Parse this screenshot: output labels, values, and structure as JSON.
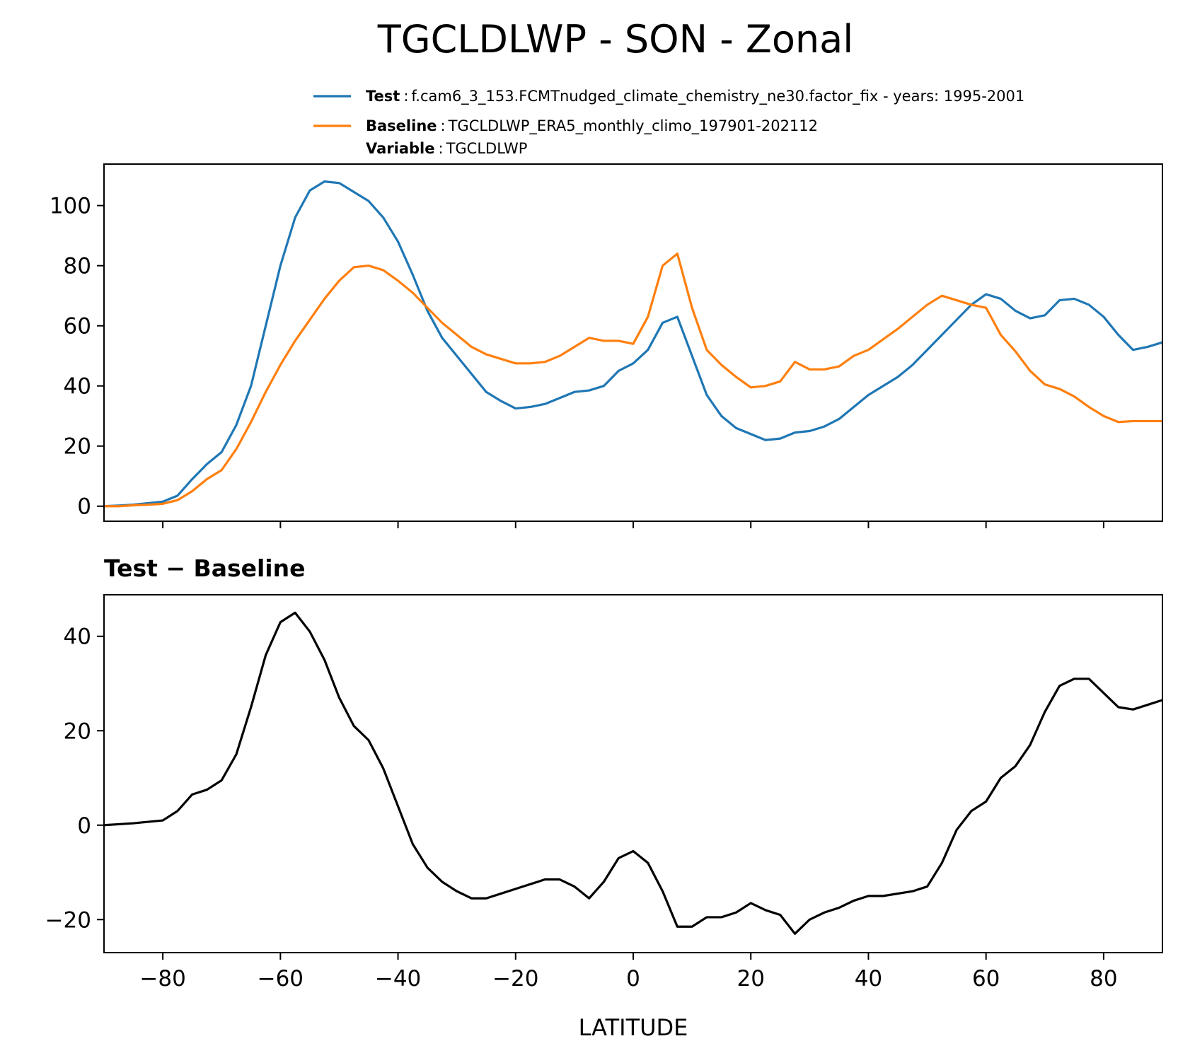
{
  "title": "TGCLDLWP - SON - Zonal",
  "chart_data": [
    {
      "type": "line",
      "legend_separator": ":",
      "legend_extra": {
        "name": "Variable",
        "description": "TGCLDLWP"
      },
      "x": [
        -90,
        -87.5,
        -85,
        -82.5,
        -80,
        -77.5,
        -75,
        -72.5,
        -70,
        -67.5,
        -65,
        -62.5,
        -60,
        -57.5,
        -55,
        -52.5,
        -50,
        -47.5,
        -45,
        -42.5,
        -40,
        -37.5,
        -35,
        -32.5,
        -30,
        -27.5,
        -25,
        -22.5,
        -20,
        -17.5,
        -15,
        -12.5,
        -10,
        -7.5,
        -5,
        -2.5,
        0,
        2.5,
        5,
        7.5,
        10,
        12.5,
        15,
        17.5,
        20,
        22.5,
        25,
        27.5,
        30,
        32.5,
        35,
        37.5,
        40,
        42.5,
        45,
        47.5,
        50,
        52.5,
        55,
        57.5,
        60,
        62.5,
        65,
        67.5,
        70,
        72.5,
        75,
        77.5,
        80,
        82.5,
        85,
        87.5,
        90
      ],
      "series": [
        {
          "name": "Test",
          "description": "f.cam6_3_153.FCMTnudged_climate_chemistry_ne30.factor_fix - years: 1995-2001",
          "color": "#1f77b4",
          "values": [
            0,
            0.2,
            0.5,
            1,
            1.5,
            3.5,
            9,
            14,
            18,
            27,
            40,
            60,
            80,
            96,
            105,
            108,
            107.5,
            104.5,
            101.5,
            96,
            88,
            77,
            65,
            56,
            50,
            44,
            38,
            35,
            32.5,
            33,
            34,
            36,
            38,
            38.5,
            40,
            45,
            47.5,
            52,
            61,
            63,
            50,
            37,
            30,
            26,
            24,
            22,
            22.5,
            24.5,
            25,
            26.5,
            29,
            33,
            37,
            40,
            43,
            47,
            52,
            57,
            62,
            67,
            70.5,
            69,
            65,
            62.5,
            63.5,
            68.5,
            69,
            67,
            63,
            57,
            52,
            53,
            54.5
          ]
        },
        {
          "name": "Baseline",
          "description": "TGCLDLWP_ERA5_monthly_climo_197901-202112",
          "color": "#ff7f0e",
          "values": [
            0,
            0,
            0.3,
            0.5,
            0.8,
            2,
            5,
            9,
            12,
            19,
            28,
            38,
            47,
            55,
            62,
            69,
            75,
            79.5,
            80,
            78.5,
            75,
            71,
            66,
            61,
            57,
            53,
            50.5,
            49,
            47.5,
            47.5,
            48,
            50,
            53,
            56,
            55,
            55,
            54,
            63,
            80,
            84,
            66,
            52,
            47,
            43,
            39.5,
            40,
            41.5,
            48,
            45.5,
            45.5,
            46.5,
            50,
            52,
            55.5,
            59,
            63,
            67,
            70,
            68.5,
            67,
            66,
            57,
            51.5,
            45,
            40.5,
            39,
            36.5,
            33,
            30,
            28,
            28.3,
            28.3,
            28.3
          ]
        }
      ],
      "xlim": [
        -90,
        90
      ],
      "xticks": [
        -80,
        -60,
        -40,
        -20,
        0,
        20,
        40,
        60,
        80
      ],
      "xtick_labels": false,
      "ylim": [
        -5,
        113.8
      ],
      "yticks": [
        0,
        20,
        40,
        60,
        80,
        100
      ]
    },
    {
      "type": "line",
      "title": "Test − Baseline",
      "xlabel": "LATITUDE",
      "x": [
        -90,
        -87.5,
        -85,
        -82.5,
        -80,
        -77.5,
        -75,
        -72.5,
        -70,
        -67.5,
        -65,
        -62.5,
        -60,
        -57.5,
        -55,
        -52.5,
        -50,
        -47.5,
        -45,
        -42.5,
        -40,
        -37.5,
        -35,
        -32.5,
        -30,
        -27.5,
        -25,
        -22.5,
        -20,
        -17.5,
        -15,
        -12.5,
        -10,
        -7.5,
        -5,
        -2.5,
        0,
        2.5,
        5,
        7.5,
        10,
        12.5,
        15,
        17.5,
        20,
        22.5,
        25,
        27.5,
        30,
        32.5,
        35,
        37.5,
        40,
        42.5,
        45,
        47.5,
        50,
        52.5,
        55,
        57.5,
        60,
        62.5,
        65,
        67.5,
        70,
        72.5,
        75,
        77.5,
        80,
        82.5,
        85,
        87.5,
        90
      ],
      "series": [
        {
          "color": "#000000",
          "values": [
            0,
            0.2,
            0.4,
            0.7,
            1,
            3,
            6.5,
            7.5,
            9.5,
            15,
            25,
            36,
            43,
            45,
            41,
            35,
            27,
            21,
            18,
            12,
            4,
            -4,
            -9,
            -12,
            -14,
            -15.5,
            -15.5,
            -14.5,
            -13.5,
            -12.5,
            -11.5,
            -11.5,
            -13,
            -15.5,
            -12,
            -7,
            -5.5,
            -8,
            -14,
            -21.5,
            -21.5,
            -19.5,
            -19.5,
            -18.5,
            -16.5,
            -18,
            -19,
            -23,
            -20,
            -18.5,
            -17.5,
            -16,
            -15,
            -15,
            -14.5,
            -14,
            -13,
            -8,
            -1,
            3,
            5,
            10,
            12.5,
            17,
            24,
            29.5,
            31,
            31,
            28,
            25,
            24.5,
            25.5,
            26.5
          ]
        }
      ],
      "xlim": [
        -90,
        90
      ],
      "xticks": [
        {
          "value": -80,
          "label": "−80"
        },
        {
          "value": -60,
          "label": "−60"
        },
        {
          "value": -40,
          "label": "−40"
        },
        {
          "value": -20,
          "label": "−20"
        },
        0,
        20,
        40,
        60,
        80
      ],
      "xtick_labels": true,
      "ylim": [
        -27,
        48.8
      ],
      "yticks": [
        {
          "value": -20,
          "label": "−20"
        },
        0,
        20,
        40
      ]
    }
  ]
}
